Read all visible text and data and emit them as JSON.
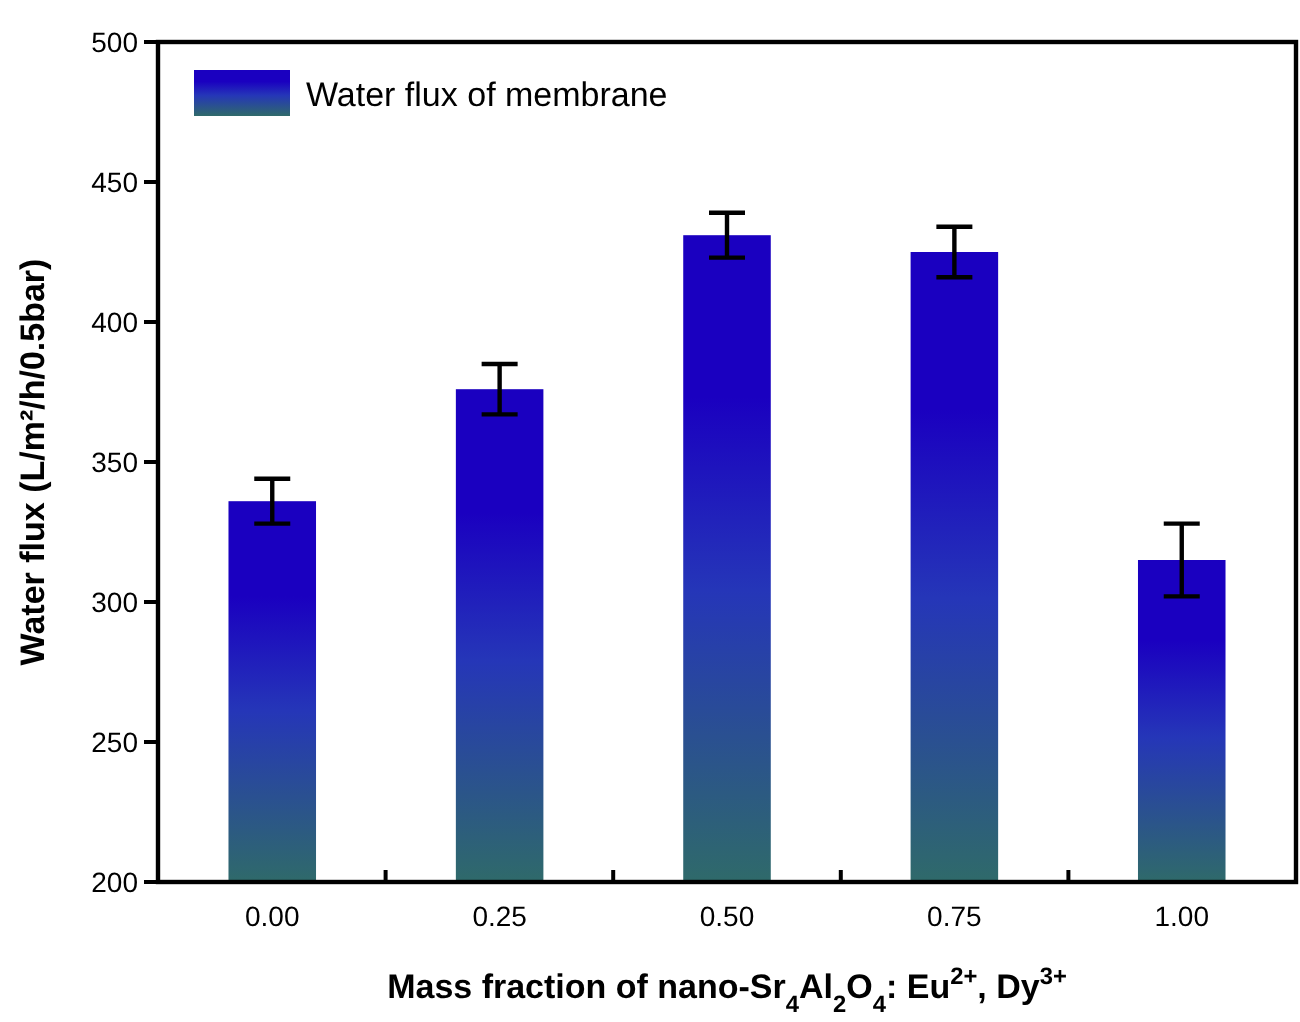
{
  "chart_data": {
    "type": "bar",
    "xlabel": "Mass fraction of nano-Sr$_{4}$Al$_{2}$O$_{4}$: Eu$^{2+}$, Dy$^{3+}$",
    "ylabel": "Water flux (L/m²/h/0.5bar)",
    "categories": [
      "0.00",
      "0.25",
      "0.50",
      "0.75",
      "1.00"
    ],
    "series": [
      {
        "name": "Water flux of membrane",
        "color": "#1a00c0",
        "values": [
          336,
          376,
          431,
          425,
          315
        ],
        "errors": [
          8,
          9,
          8,
          9,
          13
        ]
      }
    ],
    "ylim": [
      200,
      500
    ],
    "yticks": [
      200,
      250,
      300,
      350,
      400,
      450,
      500
    ],
    "grid": false,
    "legend": "top left"
  }
}
